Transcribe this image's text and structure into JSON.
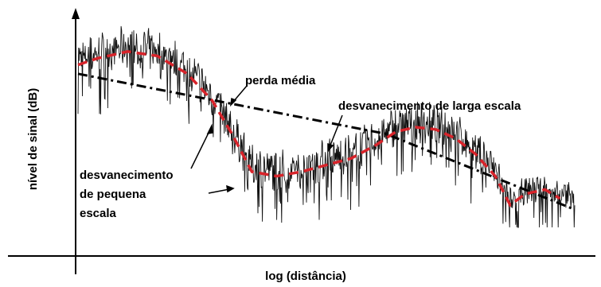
{
  "chart_data": {
    "type": "line",
    "xlabel": "log (distância)",
    "ylabel": "nível de sinal (dB)",
    "grid": false,
    "series": [
      {
        "name": "perda média",
        "style": "dash-dot",
        "color": "#000000",
        "points": [
          [
            0.0,
            0.74
          ],
          [
            0.62,
            0.47
          ],
          [
            1.0,
            0.13
          ]
        ]
      },
      {
        "name": "desvanecimento de larga escala",
        "style": "dashed",
        "color": "#d8232a",
        "points": [
          [
            0.0,
            0.78
          ],
          [
            0.04,
            0.81
          ],
          [
            0.1,
            0.84
          ],
          [
            0.16,
            0.82
          ],
          [
            0.22,
            0.74
          ],
          [
            0.27,
            0.62
          ],
          [
            0.31,
            0.47
          ],
          [
            0.35,
            0.3
          ],
          [
            0.4,
            0.28
          ],
          [
            0.45,
            0.3
          ],
          [
            0.5,
            0.33
          ],
          [
            0.55,
            0.36
          ],
          [
            0.6,
            0.42
          ],
          [
            0.64,
            0.48
          ],
          [
            0.68,
            0.5
          ],
          [
            0.72,
            0.49
          ],
          [
            0.76,
            0.45
          ],
          [
            0.8,
            0.38
          ],
          [
            0.84,
            0.28
          ],
          [
            0.87,
            0.15
          ],
          [
            0.9,
            0.2
          ],
          [
            0.94,
            0.22
          ],
          [
            0.97,
            0.18
          ]
        ]
      },
      {
        "name": "desvanecimento de pequena escala",
        "style": "solid",
        "color": "#000000",
        "points": []
      }
    ],
    "annotations": [
      {
        "id": "perda-media-label",
        "text": "perda média"
      },
      {
        "id": "larga-escala-label",
        "text": "desvanecimento de larga escala"
      },
      {
        "id": "pequena-escala-label-1",
        "text": "desvanecimento"
      },
      {
        "id": "pequena-escala-label-2",
        "text": "de pequena"
      },
      {
        "id": "pequena-escala-label-3",
        "text": "escala"
      }
    ],
    "colors": {
      "mean": "#000000",
      "large_scale": "#d8232a",
      "small_scale": "#000000"
    }
  }
}
